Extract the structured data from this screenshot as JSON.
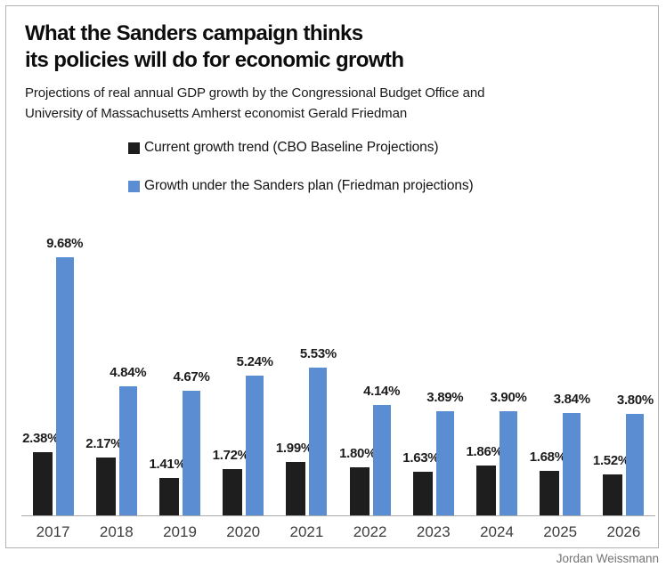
{
  "header": {
    "title_lines": [
      "What the Sanders campaign thinks",
      "its policies will do for economic growth"
    ],
    "subtitle_lines": [
      "Projections of real annual GDP growth by the Congressional Budget Office and",
      "University of Massachusetts Amherst economist Gerald Friedman"
    ]
  },
  "legend": {
    "items": [
      {
        "label": "Current growth trend (CBO Baseline Projections)",
        "color": "#1e1e1e"
      },
      {
        "label": "Growth under the Sanders plan (Friedman projections)",
        "color": "#5b8dd3"
      }
    ]
  },
  "chart_data": {
    "type": "bar",
    "title": "What the Sanders campaign thinks its policies will do for economic growth",
    "subtitle": "Projections of real annual GDP growth by the Congressional Budget Office and University of Massachusetts Amherst economist Gerald Friedman",
    "categories": [
      "2017",
      "2018",
      "2019",
      "2020",
      "2021",
      "2022",
      "2023",
      "2024",
      "2025",
      "2026"
    ],
    "series": [
      {
        "name": "Current growth trend (CBO Baseline Projections)",
        "color": "#1e1e1e",
        "values": [
          2.38,
          2.17,
          1.41,
          1.72,
          1.99,
          1.8,
          1.63,
          1.86,
          1.68,
          1.52
        ],
        "labels": [
          "2.38%",
          "2.17%",
          "1.41%",
          "1.72%",
          "1.99%",
          "1.80%",
          "1.63%",
          "1.86%",
          "1.68%",
          "1.52%"
        ]
      },
      {
        "name": "Growth under the Sanders plan (Friedman projections)",
        "color": "#5b8dd3",
        "values": [
          9.68,
          4.84,
          4.67,
          5.24,
          5.53,
          4.14,
          3.89,
          3.9,
          3.84,
          3.8
        ],
        "labels": [
          "9.68%",
          "4.84%",
          "4.67%",
          "5.24%",
          "5.53%",
          "4.14%",
          "3.89%",
          "3.90%",
          "3.84%",
          "3.80%"
        ]
      }
    ],
    "xlabel": "",
    "ylabel": "",
    "ylim": [
      0,
      10
    ],
    "grid": false,
    "value_labels": true,
    "legend_position": "top-left-of-plot"
  },
  "footer": {
    "credit": "Jordan Weissmann"
  }
}
